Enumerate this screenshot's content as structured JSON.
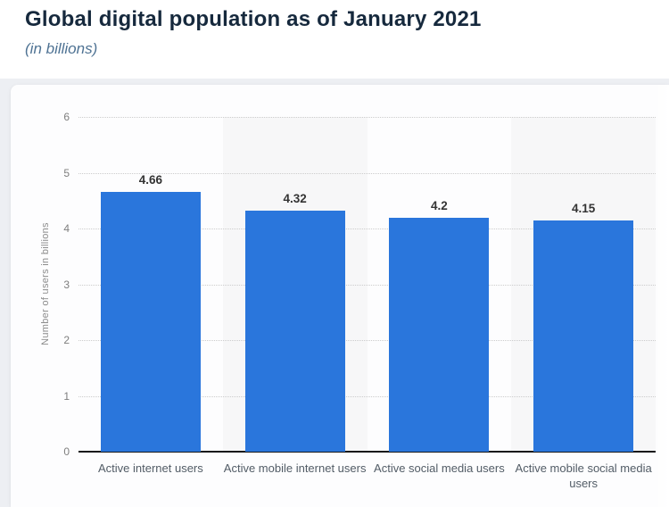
{
  "page": {
    "title": "Global digital population as of January 2021",
    "subtitle": "(in billions)"
  },
  "chart_data": {
    "type": "bar",
    "title": "Global digital population as of January 2021",
    "subtitle": "(in billions)",
    "categories": [
      "Active internet users",
      "Active mobile internet users",
      "Active social media users",
      "Active mobile social media users"
    ],
    "values": [
      4.66,
      4.32,
      4.2,
      4.15
    ],
    "value_labels": [
      "4.66",
      "4.32",
      "4.2",
      "4.15"
    ],
    "xlabel": "",
    "ylabel": "Number of users in billions",
    "ylim": [
      0,
      6
    ],
    "yticks": [
      0,
      1,
      2,
      3,
      4,
      5,
      6
    ],
    "grid": "horizontal-dotted",
    "legend": "none",
    "shaded_columns": [
      1,
      3
    ]
  },
  "colors": {
    "bar": "#2a76dc",
    "title": "#16293d",
    "subtitle": "#4e7293",
    "value_label": "#333333",
    "tick_label": "#7e7e7e",
    "axis_title": "#8c8c8c",
    "category_label": "#525c66",
    "gridline": "#cccccc",
    "baseline": "#15171a",
    "plot_band": "#f7f7f8",
    "page_bg": "#edeff3",
    "card_bg": "#fdfdfe"
  }
}
